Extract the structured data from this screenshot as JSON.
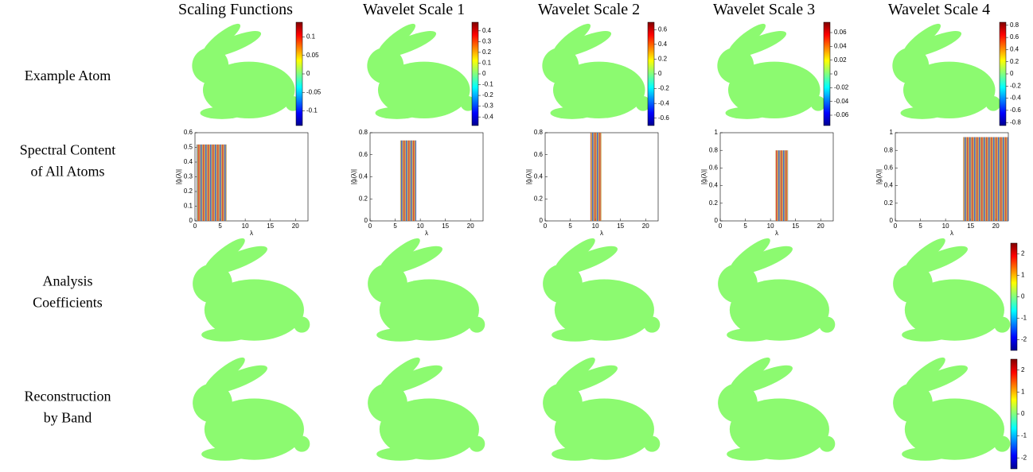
{
  "columns": [
    "Scaling Functions",
    "Wavelet Scale 1",
    "Wavelet Scale 2",
    "Wavelet Scale 3",
    "Wavelet Scale 4"
  ],
  "rows": [
    [
      "Example Atom"
    ],
    [
      "Spectral Content",
      "of All Atoms"
    ],
    [
      "Analysis",
      "Coefficients"
    ],
    [
      "Reconstruction",
      "by Band"
    ]
  ],
  "atom_colorbars": [
    {
      "lim": [
        -0.14,
        0.14
      ],
      "ticks": [
        0.1,
        0.05,
        0,
        -0.05,
        -0.1
      ]
    },
    {
      "lim": [
        -0.48,
        0.48
      ],
      "ticks": [
        0.4,
        0.3,
        0.2,
        0.1,
        0,
        -0.1,
        -0.2,
        -0.3,
        -0.4
      ]
    },
    {
      "lim": [
        -0.7,
        0.7
      ],
      "ticks": [
        0.6,
        0.4,
        0.2,
        0,
        -0.2,
        -0.4,
        -0.6
      ]
    },
    {
      "lim": [
        -0.075,
        0.075
      ],
      "ticks": [
        0.06,
        0.04,
        0.02,
        0,
        -0.02,
        -0.04,
        -0.06
      ]
    },
    {
      "lim": [
        -0.85,
        0.85
      ],
      "ticks": [
        0.8,
        0.6,
        0.4,
        0.2,
        0,
        -0.2,
        -0.4,
        -0.6,
        -0.8
      ]
    }
  ],
  "spectra": {
    "xlabel": "λ",
    "ylabel": "|ĝᵢ(λ)|",
    "xlim": [
      0,
      22.5
    ],
    "xticks": [
      0,
      5,
      10,
      15,
      20
    ],
    "panels": [
      {
        "ylim": [
          0,
          0.6
        ],
        "yticks": [
          0,
          0.1,
          0.2,
          0.3,
          0.4,
          0.5,
          0.6
        ],
        "band": [
          0.3,
          6.3
        ],
        "peak": 0.52
      },
      {
        "ylim": [
          0,
          0.8
        ],
        "yticks": [
          0,
          0.2,
          0.4,
          0.6,
          0.8
        ],
        "band": [
          6,
          9.2
        ],
        "peak": 0.73
      },
      {
        "ylim": [
          0,
          0.8
        ],
        "yticks": [
          0,
          0.2,
          0.4,
          0.6,
          0.8
        ],
        "band": [
          9,
          11.2
        ],
        "peak": 0.8
      },
      {
        "ylim": [
          0,
          1
        ],
        "yticks": [
          0,
          0.2,
          0.4,
          0.6,
          0.8,
          1
        ],
        "band": [
          11,
          13.5
        ],
        "peak": 0.8
      },
      {
        "ylim": [
          0,
          1
        ],
        "yticks": [
          0,
          0.2,
          0.4,
          0.6,
          0.8,
          1
        ],
        "band": [
          13.5,
          22.5
        ],
        "peak": 0.95
      }
    ]
  },
  "coefficient_colorbars": [
    {
      "lim": [
        -2.5,
        2.5
      ],
      "ticks": [
        2,
        1,
        0,
        -1,
        -2
      ]
    },
    {
      "lim": [
        -2.5,
        2.5
      ],
      "ticks": [
        2,
        1,
        0,
        -1,
        -2
      ]
    }
  ]
}
